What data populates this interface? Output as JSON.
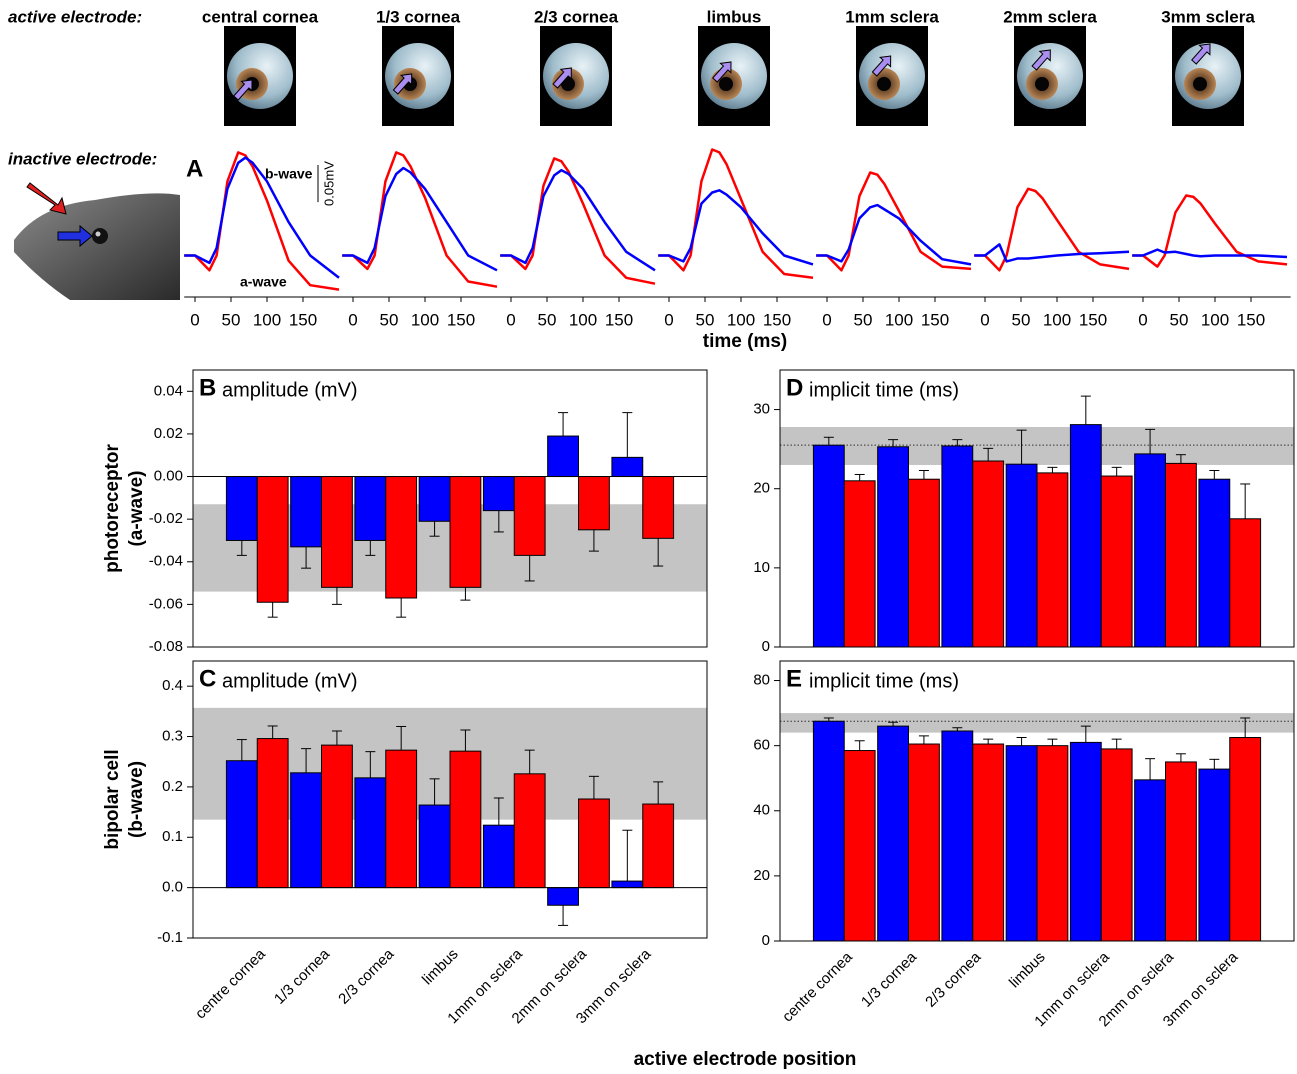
{
  "labels": {
    "active": "active electrode:",
    "inactive": "inactive electrode:",
    "time_axis": "time (ms)",
    "position_axis": "active electrode position"
  },
  "chart_data": [
    {
      "type": "line",
      "title": "central cornea",
      "panel_label": "A",
      "annotations": [
        "b-wave",
        "a-wave"
      ],
      "scale_bar": {
        "value": 0.05,
        "label": "0.05mV"
      },
      "x": [
        -15,
        0,
        20,
        30,
        45,
        60,
        70,
        80,
        100,
        130,
        160,
        200
      ],
      "xlim": [
        -15,
        205
      ],
      "xticks": [
        0,
        50,
        100,
        150
      ],
      "ylim": [
        -0.06,
        0.145
      ],
      "series": [
        {
          "color": "#ff0000",
          "values": [
            0,
            0,
            -0.02,
            0,
            0.1,
            0.139,
            0.135,
            0.12,
            0.074,
            -0.007,
            -0.04,
            -0.046
          ]
        },
        {
          "color": "#0000ff",
          "values": [
            0,
            0,
            -0.01,
            0.01,
            0.09,
            0.125,
            0.132,
            0.125,
            0.1,
            0.045,
            0,
            -0.03
          ]
        }
      ]
    },
    {
      "type": "line",
      "title": "1/3 cornea",
      "x": [
        -15,
        0,
        20,
        30,
        45,
        60,
        70,
        80,
        100,
        130,
        160,
        200
      ],
      "xlim": [
        -15,
        205
      ],
      "xticks": [
        0,
        50,
        100,
        150
      ],
      "ylim": [
        -0.06,
        0.145
      ],
      "series": [
        {
          "color": "#ff0000",
          "values": [
            0,
            0,
            -0.018,
            0,
            0.1,
            0.139,
            0.135,
            0.12,
            0.078,
            0,
            -0.035,
            -0.042
          ]
        },
        {
          "color": "#0000ff",
          "values": [
            0,
            0,
            -0.01,
            0.01,
            0.08,
            0.11,
            0.118,
            0.112,
            0.09,
            0.045,
            0,
            -0.02
          ]
        }
      ]
    },
    {
      "type": "line",
      "title": "2/3 cornea",
      "x": [
        -15,
        0,
        20,
        30,
        45,
        60,
        70,
        80,
        100,
        130,
        160,
        200
      ],
      "xlim": [
        -15,
        205
      ],
      "xticks": [
        0,
        50,
        100,
        150
      ],
      "ylim": [
        -0.06,
        0.145
      ],
      "series": [
        {
          "color": "#ff0000",
          "values": [
            0,
            0,
            -0.018,
            0,
            0.094,
            0.131,
            0.127,
            0.113,
            0.07,
            0,
            -0.03,
            -0.038
          ]
        },
        {
          "color": "#0000ff",
          "values": [
            0,
            0,
            -0.01,
            0.01,
            0.08,
            0.108,
            0.115,
            0.11,
            0.09,
            0.045,
            0.005,
            -0.02
          ]
        }
      ]
    },
    {
      "type": "line",
      "title": "limbus",
      "x": [
        -15,
        0,
        20,
        30,
        45,
        60,
        70,
        80,
        100,
        130,
        160,
        200
      ],
      "xlim": [
        -15,
        205
      ],
      "xticks": [
        0,
        50,
        100,
        150
      ],
      "ylim": [
        -0.06,
        0.145
      ],
      "series": [
        {
          "color": "#ff0000",
          "values": [
            0,
            0,
            -0.02,
            0,
            0.1,
            0.143,
            0.139,
            0.123,
            0.076,
            0.005,
            -0.025,
            -0.03
          ]
        },
        {
          "color": "#0000ff",
          "values": [
            0,
            0,
            -0.008,
            0.01,
            0.07,
            0.085,
            0.088,
            0.082,
            0.065,
            0.03,
            0,
            -0.012
          ]
        }
      ]
    },
    {
      "type": "line",
      "title": "1mm sclera",
      "x": [
        -15,
        0,
        20,
        30,
        45,
        60,
        70,
        80,
        100,
        130,
        160,
        200
      ],
      "xlim": [
        -15,
        205
      ],
      "xticks": [
        0,
        50,
        100,
        150
      ],
      "ylim": [
        -0.06,
        0.145
      ],
      "series": [
        {
          "color": "#ff0000",
          "values": [
            0,
            0,
            -0.02,
            0,
            0.08,
            0.112,
            0.109,
            0.096,
            0.06,
            0.005,
            -0.015,
            -0.018
          ]
        },
        {
          "color": "#0000ff",
          "values": [
            0,
            0,
            -0.008,
            0.008,
            0.05,
            0.065,
            0.068,
            0.062,
            0.05,
            0.02,
            -0.005,
            -0.012
          ]
        }
      ]
    },
    {
      "type": "line",
      "title": "2mm sclera",
      "x": [
        -15,
        0,
        20,
        30,
        45,
        60,
        70,
        80,
        100,
        130,
        160,
        200
      ],
      "xlim": [
        -15,
        205
      ],
      "xticks": [
        0,
        50,
        100,
        150
      ],
      "ylim": [
        -0.06,
        0.145
      ],
      "series": [
        {
          "color": "#ff0000",
          "values": [
            0,
            0,
            -0.02,
            0,
            0.065,
            0.09,
            0.087,
            0.077,
            0.048,
            0.005,
            -0.012,
            -0.018
          ]
        },
        {
          "color": "#0000ff",
          "values": [
            0,
            0,
            0.015,
            -0.008,
            -0.004,
            -0.004,
            -0.003,
            -0.002,
            0,
            0.002,
            0.003,
            0.005
          ]
        }
      ]
    },
    {
      "type": "line",
      "title": "3mm sclera",
      "x": [
        -15,
        0,
        20,
        30,
        45,
        60,
        70,
        80,
        100,
        130,
        160,
        200
      ],
      "xlim": [
        -15,
        205
      ],
      "xticks": [
        0,
        50,
        100,
        150
      ],
      "ylim": [
        -0.06,
        0.145
      ],
      "series": [
        {
          "color": "#ff0000",
          "values": [
            0,
            0,
            -0.015,
            0,
            0.058,
            0.081,
            0.079,
            0.07,
            0.043,
            0.005,
            -0.008,
            -0.012
          ]
        },
        {
          "color": "#0000ff",
          "values": [
            0,
            0,
            0.008,
            0.004,
            0.005,
            0.002,
            0,
            -0.001,
            0,
            0,
            0,
            -0.002
          ]
        }
      ]
    },
    {
      "type": "bar",
      "panel_label": "B",
      "title": "amplitude (mV)",
      "ylabel": [
        "photoreceptor",
        "(a-wave)"
      ],
      "ylim": [
        -0.08,
        0.05
      ],
      "yticks": [
        -0.08,
        -0.06,
        -0.04,
        -0.02,
        {
          "value": 0,
          "label": "0.00"
        },
        0.02,
        0.04
      ],
      "normal_range": [
        -0.054,
        -0.013
      ],
      "series": [
        {
          "color": "#0000ff",
          "values": [
            -0.03,
            -0.033,
            -0.03,
            -0.021,
            -0.016,
            0.019,
            0.009
          ],
          "errors": [
            0.007,
            0.01,
            0.007,
            0.007,
            0.01,
            0.011,
            0.021
          ]
        },
        {
          "color": "#ff0000",
          "values": [
            -0.059,
            -0.052,
            -0.057,
            -0.052,
            -0.037,
            -0.025,
            -0.029
          ],
          "errors": [
            0.007,
            0.008,
            0.009,
            0.006,
            0.012,
            0.01,
            0.013
          ]
        }
      ]
    },
    {
      "type": "bar",
      "panel_label": "C",
      "title": "amplitude (mV)",
      "ylabel": [
        "bipolar cell",
        "(b-wave)"
      ],
      "categories": [
        "centre cornea",
        "1/3 cornea",
        "2/3 cornea",
        "limbus",
        "1mm on sclera",
        "2mm on sclera",
        "3mm on sclera"
      ],
      "ylim": [
        -0.1,
        0.45
      ],
      "yticks": [
        -0.1,
        {
          "value": 0,
          "label": "0.0"
        },
        0.1,
        0.2,
        0.3,
        0.4
      ],
      "normal_range": [
        0.135,
        0.357
      ],
      "series": [
        {
          "color": "#0000ff",
          "values": [
            0.252,
            0.228,
            0.218,
            0.164,
            0.124,
            -0.035,
            0.013
          ],
          "errors": [
            0.042,
            0.048,
            0.052,
            0.052,
            0.054,
            0.04,
            0.101
          ]
        },
        {
          "color": "#ff0000",
          "values": [
            0.296,
            0.283,
            0.273,
            0.271,
            0.226,
            0.176,
            0.166
          ],
          "errors": [
            0.025,
            0.028,
            0.047,
            0.042,
            0.047,
            0.045,
            0.044
          ]
        }
      ]
    },
    {
      "type": "bar",
      "panel_label": "D",
      "title": "implicit time (ms)",
      "ylim": [
        0,
        35
      ],
      "yticks": [
        0,
        10,
        20,
        30
      ],
      "normal_range": [
        23,
        27.8
      ],
      "reference": 25.5,
      "series": [
        {
          "color": "#0000ff",
          "values": [
            25.5,
            25.3,
            25.4,
            23.1,
            28.1,
            24.4,
            21.2
          ],
          "errors": [
            1.0,
            0.9,
            0.8,
            4.3,
            3.6,
            3.1,
            1.1
          ]
        },
        {
          "color": "#ff0000",
          "values": [
            21.0,
            21.2,
            23.5,
            22.0,
            21.6,
            23.2,
            16.2
          ],
          "errors": [
            0.8,
            1.1,
            1.6,
            0.7,
            1.1,
            1.1,
            4.4
          ]
        }
      ]
    },
    {
      "type": "bar",
      "panel_label": "E",
      "title": "implicit time (ms)",
      "categories": [
        "centre cornea",
        "1/3 cornea",
        "2/3 cornea",
        "limbus",
        "1mm on sclera",
        "2mm on sclera",
        "3mm on sclera"
      ],
      "ylim": [
        0,
        86
      ],
      "yticks": [
        0,
        20,
        40,
        60,
        80
      ],
      "normal_range": [
        64,
        70
      ],
      "reference": 67.5,
      "series": [
        {
          "color": "#0000ff",
          "values": [
            67.5,
            66,
            64.5,
            60,
            61,
            49.5,
            52.8
          ],
          "errors": [
            1,
            1.2,
            1,
            2.5,
            5,
            6.5,
            3
          ]
        },
        {
          "color": "#ff0000",
          "values": [
            58.5,
            60.5,
            60.5,
            60,
            59,
            55,
            62.5
          ],
          "errors": [
            3,
            2.5,
            1.5,
            2,
            3,
            2.5,
            6
          ]
        }
      ]
    }
  ]
}
